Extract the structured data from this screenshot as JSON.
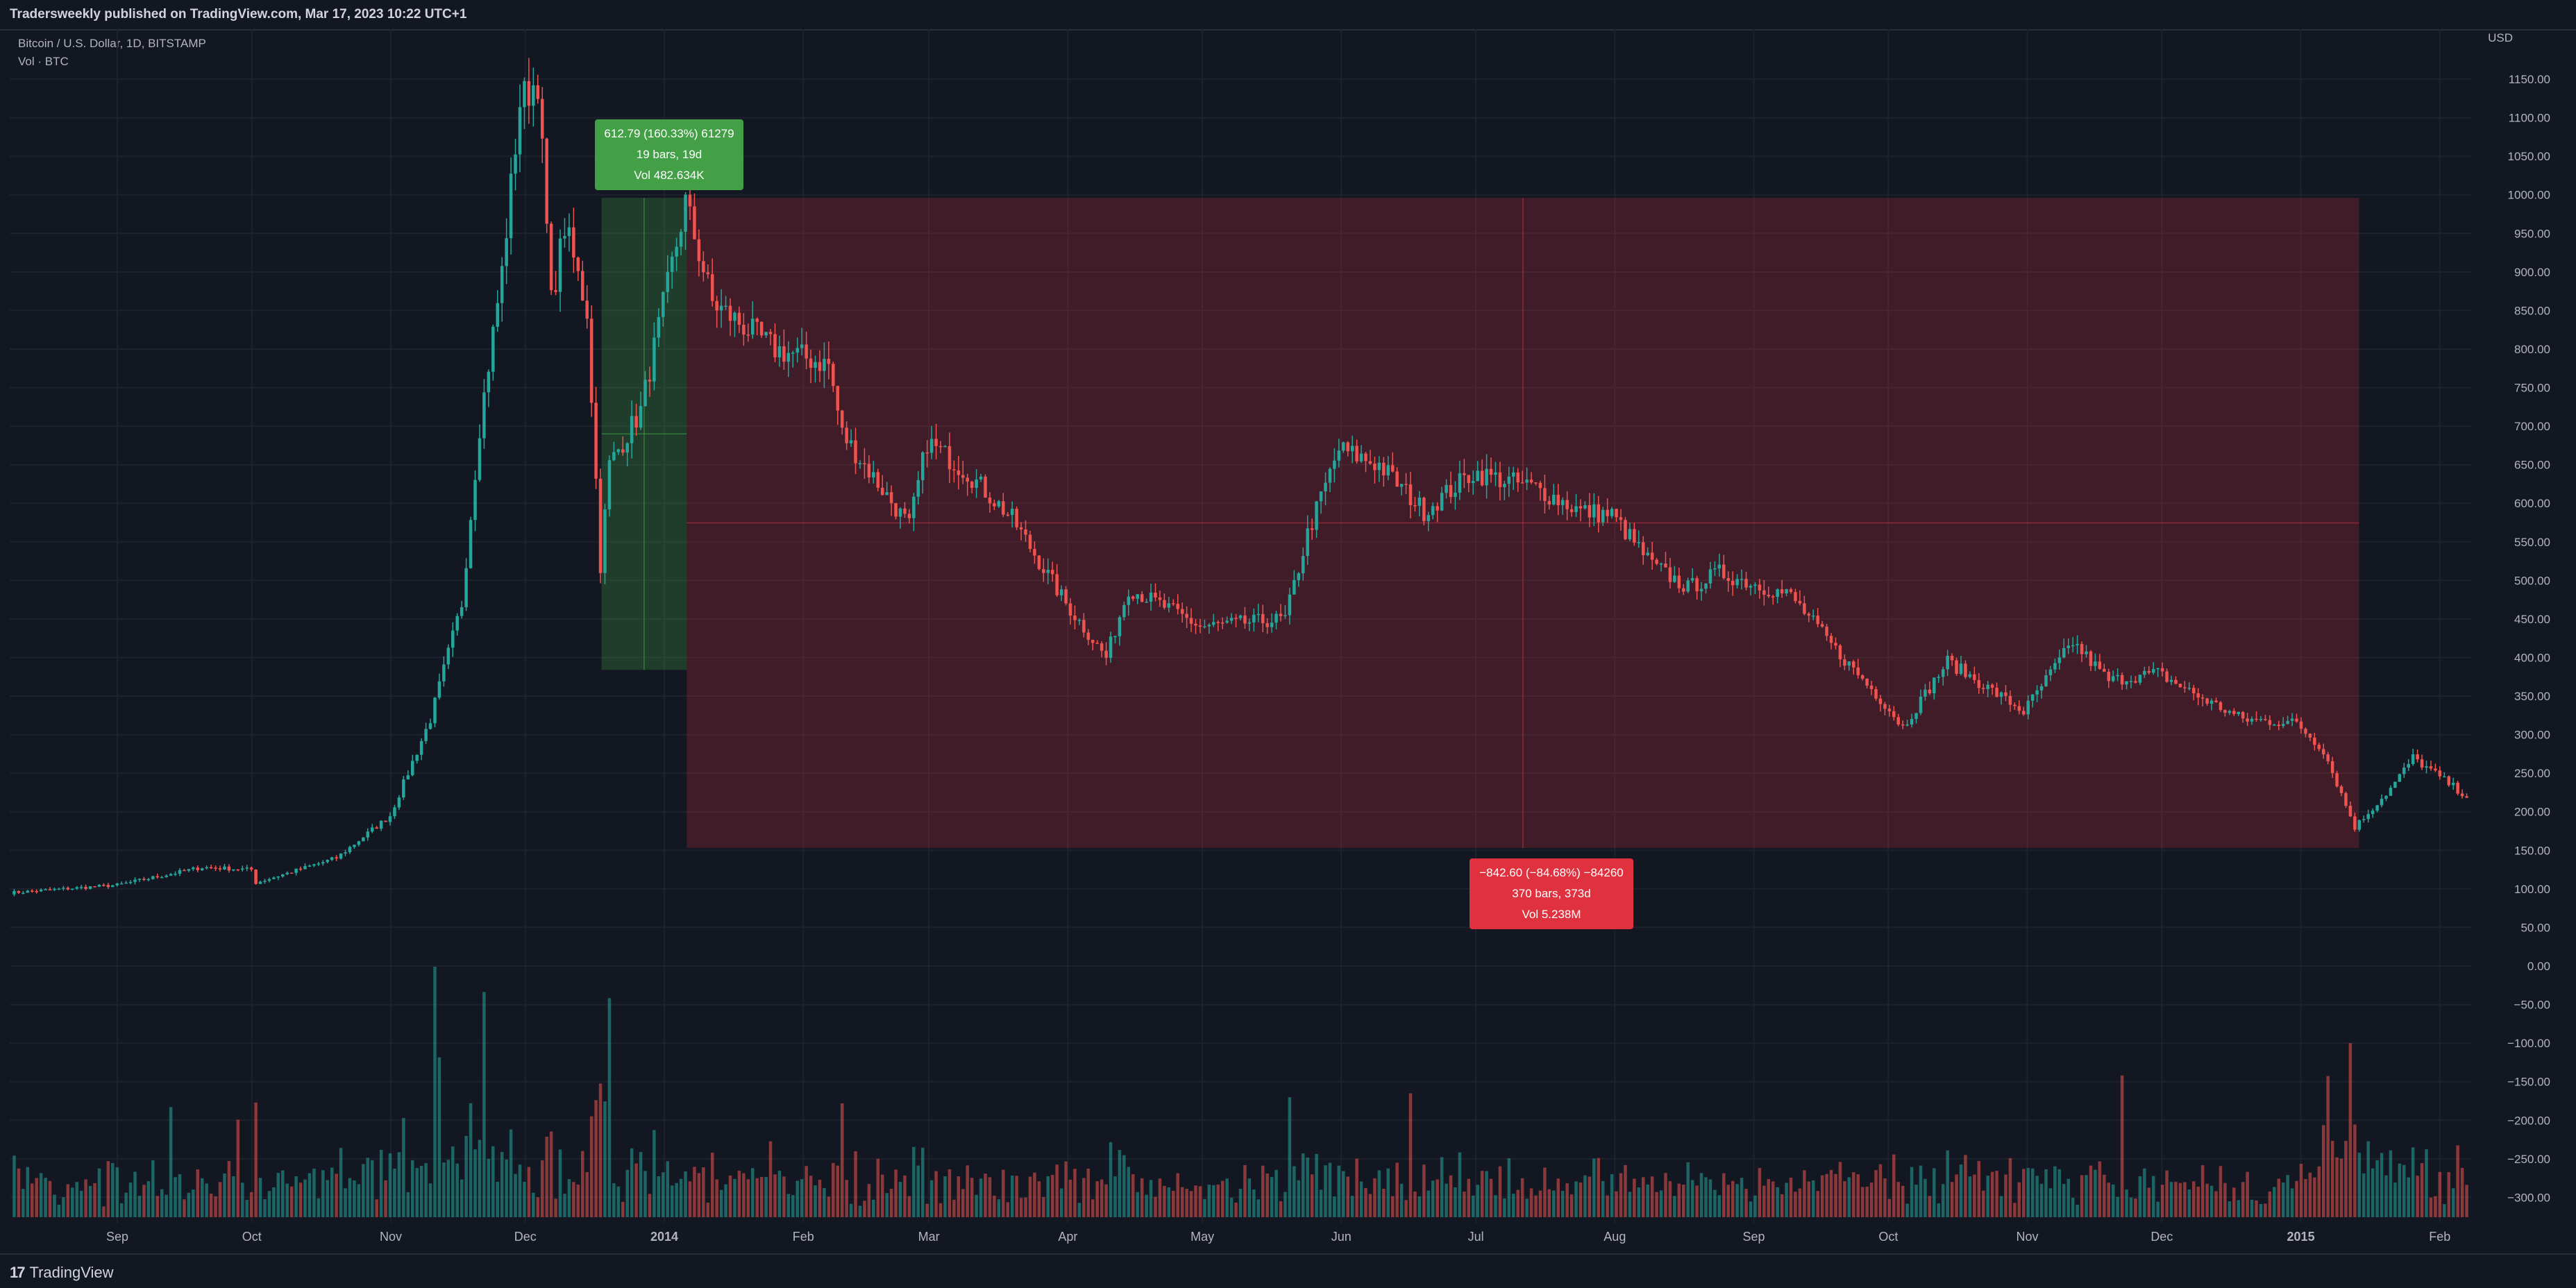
{
  "header": {
    "text": "Tradersweekly published on TradingView.com, Mar 17, 2023 10:22 UTC+1"
  },
  "legend": {
    "symbol": "Bitcoin / U.S. Dollar, 1D, BITSTAMP",
    "volume": "Vol · BTC"
  },
  "footer": {
    "logo_mark": "17",
    "logo_name": "TradingView"
  },
  "colors": {
    "background": "#131722",
    "up": "#26a69a",
    "down": "#ef5350",
    "measure_up": "#43a047",
    "measure_down": "#e0313f"
  },
  "measure_up": {
    "line1": "612.79 (160.33%) 61279",
    "line2": "19 bars, 19d",
    "line3": "Vol 482.634K"
  },
  "measure_down": {
    "line1": "−842.60 (−84.68%) −84260",
    "line2": "370 bars, 373d",
    "line3": "Vol 5.238M"
  },
  "chart_data": {
    "type": "candlestick",
    "title": "Bitcoin / U.S. Dollar, 1D, BITSTAMP",
    "ylabel": "USD",
    "ylim": [
      -320,
      1175
    ],
    "y_ticks": [
      "1150.00",
      "1100.00",
      "1050.00",
      "1000.00",
      "950.00",
      "900.00",
      "850.00",
      "800.00",
      "750.00",
      "700.00",
      "650.00",
      "600.00",
      "550.00",
      "500.00",
      "450.00",
      "400.00",
      "350.00",
      "300.00",
      "250.00",
      "200.00",
      "150.00",
      "100.00",
      "50.00",
      "0.00",
      "−50.00",
      "−100.00",
      "−150.00",
      "−200.00",
      "−250.00",
      "−300.00"
    ],
    "x_ticks": [
      "Sep",
      "Oct",
      "Nov",
      "Dec",
      "2014",
      "Feb",
      "Mar",
      "Apr",
      "May",
      "Jun",
      "Jul",
      "Aug",
      "Sep",
      "Oct",
      "Nov",
      "Dec",
      "2015",
      "Feb"
    ],
    "x_range": [
      "2013-08-08",
      "2015-02-08"
    ],
    "price_path": [
      [
        "2013-08-08",
        95
      ],
      [
        "2013-09-01",
        105
      ],
      [
        "2013-09-20",
        128
      ],
      [
        "2013-10-01",
        125
      ],
      [
        "2013-10-02",
        108
      ],
      [
        "2013-10-20",
        140
      ],
      [
        "2013-11-01",
        195
      ],
      [
        "2013-11-10",
        320
      ],
      [
        "2013-11-17",
        470
      ],
      [
        "2013-11-21",
        700
      ],
      [
        "2013-11-26",
        900
      ],
      [
        "2013-11-30",
        1120
      ],
      [
        "2013-12-04",
        1150
      ],
      [
        "2013-12-07",
        860
      ],
      [
        "2013-12-10",
        960
      ],
      [
        "2013-12-15",
        850
      ],
      [
        "2013-12-18",
        520
      ],
      [
        "2013-12-20",
        650
      ],
      [
        "2013-12-27",
        720
      ],
      [
        "2014-01-06",
        990
      ],
      [
        "2014-01-12",
        860
      ],
      [
        "2014-01-26",
        800
      ],
      [
        "2014-02-07",
        780
      ],
      [
        "2014-02-10",
        690
      ],
      [
        "2014-02-25",
        570
      ],
      [
        "2014-03-01",
        680
      ],
      [
        "2014-03-10",
        640
      ],
      [
        "2014-03-20",
        580
      ],
      [
        "2014-04-01",
        470
      ],
      [
        "2014-04-10",
        400
      ],
      [
        "2014-04-15",
        490
      ],
      [
        "2014-04-25",
        460
      ],
      [
        "2014-05-01",
        440
      ],
      [
        "2014-05-20",
        450
      ],
      [
        "2014-05-25",
        560
      ],
      [
        "2014-06-01",
        670
      ],
      [
        "2014-06-10",
        650
      ],
      [
        "2014-06-20",
        590
      ],
      [
        "2014-07-01",
        640
      ],
      [
        "2014-07-15",
        620
      ],
      [
        "2014-07-25",
        590
      ],
      [
        "2014-08-01",
        585
      ],
      [
        "2014-08-10",
        520
      ],
      [
        "2014-08-18",
        490
      ],
      [
        "2014-08-25",
        510
      ],
      [
        "2014-09-10",
        480
      ],
      [
        "2014-09-20",
        410
      ],
      [
        "2014-10-01",
        340
      ],
      [
        "2014-10-05",
        310
      ],
      [
        "2014-10-15",
        395
      ],
      [
        "2014-11-01",
        330
      ],
      [
        "2014-11-12",
        420
      ],
      [
        "2014-11-20",
        370
      ],
      [
        "2014-12-01",
        380
      ],
      [
        "2014-12-10",
        350
      ],
      [
        "2014-12-20",
        320
      ],
      [
        "2015-01-01",
        315
      ],
      [
        "2015-01-07",
        280
      ],
      [
        "2015-01-14",
        180
      ],
      [
        "2015-01-22",
        230
      ],
      [
        "2015-01-27",
        270
      ],
      [
        "2015-02-08",
        220
      ]
    ],
    "volume_axis_note": "Volume histogram overlaid at bottom of same pane",
    "measure_regions": [
      {
        "from": "2013-12-18",
        "to": "2014-01-06",
        "low": 384,
        "high": 996,
        "direction": "up",
        "label": "612.79 (160.33%) 61279"
      },
      {
        "from": "2014-01-06",
        "to": "2015-01-14",
        "low": 153,
        "high": 996,
        "direction": "down",
        "label": "−842.60 (−84.68%) −84260"
      }
    ],
    "grid": true,
    "legend_position": "top-left"
  }
}
